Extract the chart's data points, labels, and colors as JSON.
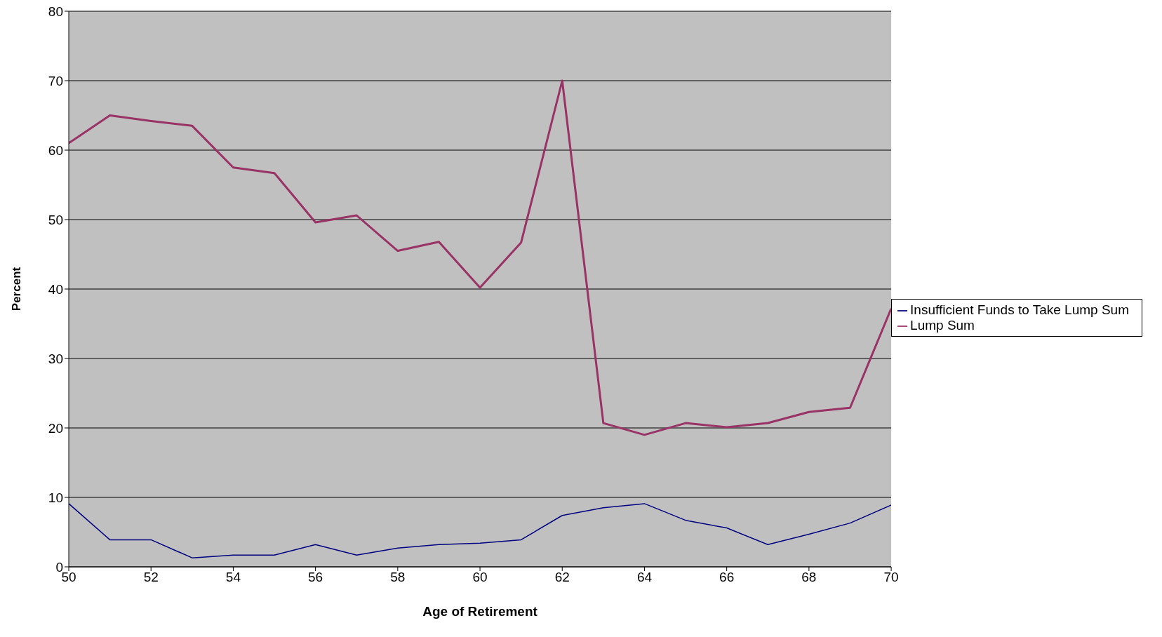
{
  "chart_data": {
    "type": "line",
    "xlabel": "Age of Retirement",
    "ylabel": "Percent",
    "x": [
      50,
      51,
      52,
      53,
      54,
      55,
      56,
      57,
      58,
      59,
      60,
      61,
      62,
      63,
      64,
      65,
      66,
      67,
      68,
      69,
      70
    ],
    "series": [
      {
        "name": "Insufficient Funds to Take Lump Sum",
        "color": "#000080",
        "values": [
          9.1,
          3.9,
          3.9,
          1.3,
          1.7,
          1.7,
          3.2,
          1.7,
          2.7,
          3.2,
          3.4,
          3.9,
          7.4,
          8.5,
          9.1,
          6.7,
          5.6,
          3.2,
          4.7,
          6.3,
          8.9
        ]
      },
      {
        "name": "Lump Sum",
        "color": "#993366",
        "values": [
          61,
          65,
          64.2,
          63.5,
          57.5,
          56.7,
          49.6,
          50.6,
          45.5,
          46.8,
          40.2,
          46.7,
          70,
          20.7,
          19,
          20.7,
          20.1,
          20.7,
          22.3,
          22.9,
          37.2
        ]
      }
    ],
    "xlim": [
      50,
      70
    ],
    "xticks": [
      50,
      52,
      54,
      56,
      58,
      60,
      62,
      64,
      66,
      68,
      70
    ],
    "ylim": [
      0,
      80
    ],
    "yticks": [
      0,
      10,
      20,
      30,
      40,
      50,
      60,
      70,
      80
    ],
    "grid": "y",
    "legend": "right",
    "marker": "none",
    "line_style": "solid"
  }
}
